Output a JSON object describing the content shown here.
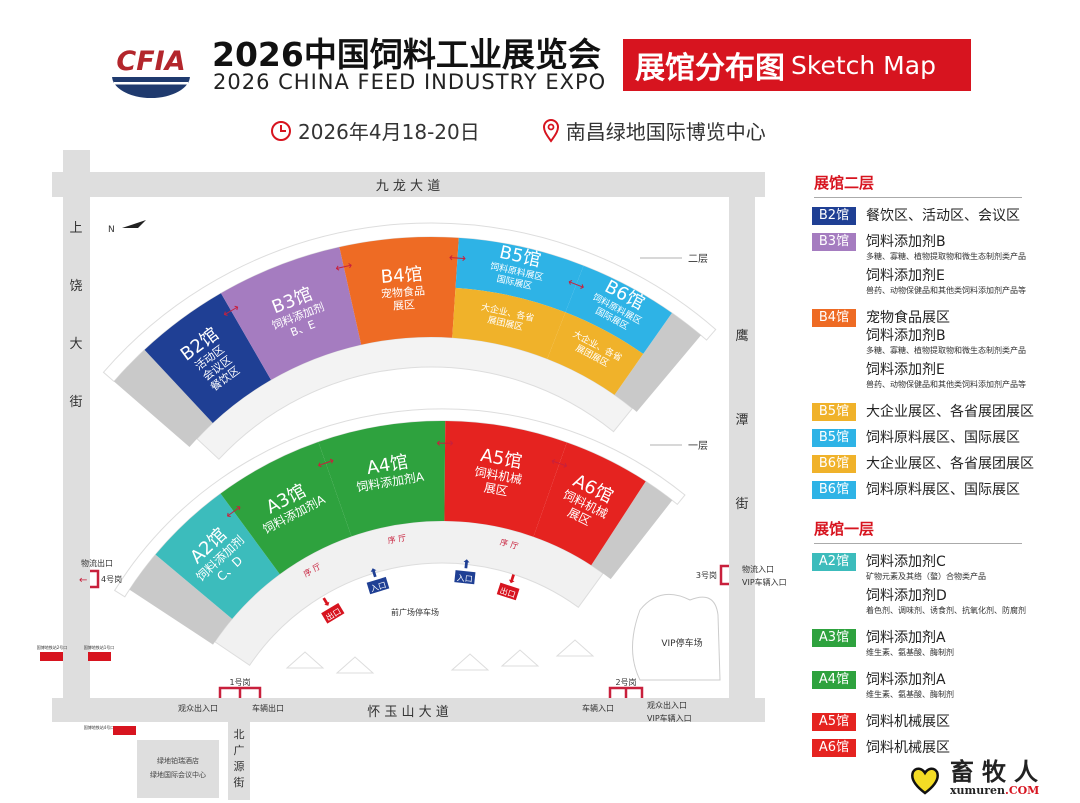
{
  "header": {
    "logo_text": "CFIA",
    "title": "2026中国饲料工业展览会",
    "subtitle": "2026 CHINA FEED INDUSTRY EXPO",
    "banner_cn": "展馆分布图",
    "banner_en": "Sketch Map",
    "date": "2026年4月18-20日",
    "venue": "南昌绿地国际博览中心"
  },
  "colors": {
    "accent": "#d7141f",
    "B2": "#1f3f94",
    "B3": "#a57cc0",
    "B4": "#ee6b24",
    "blue": "#2eb3e6",
    "yellow": "#f0b22a",
    "A2": "#3cbcbc",
    "green": "#2ea23e",
    "red": "#e52320",
    "gray": "#c9c9c9",
    "road": "#dedede"
  },
  "roads": {
    "north": "九 龙 大 道",
    "west": [
      "上",
      "饶",
      "大",
      "街"
    ],
    "east": [
      "鹰",
      "潭",
      "街"
    ],
    "south": "怀 玉 山 大 道",
    "south_branch": [
      "北",
      "广",
      "源",
      "街"
    ]
  },
  "map": {
    "compass": "N",
    "floor2_label": "二层",
    "floor1_label": "一层",
    "front_parking": "前广场停车场",
    "vip_parking": "VIP停车场",
    "hotel_lines": [
      "绿地铂瑞酒店",
      "绿地国际会议中心"
    ],
    "lobby": "序 厅",
    "entrance": "入口",
    "exit": "出口",
    "gates": {
      "g1": "1号岗",
      "g1_left": "观众出入口",
      "g1_right": "车辆出口",
      "g2": "2号岗",
      "g2_left": "车辆入口",
      "g2_right": "观众出入口",
      "g2_right2": "VIP车辆入口",
      "g3": "3号岗",
      "g3_r1": "物流入口",
      "g3_r2": "VIP车辆入口",
      "g4": "4号岗",
      "g4_top": "物流出口"
    },
    "metro": [
      "国博地铁站2号口",
      "国博地铁站1号口",
      "国博地铁站4号口"
    ]
  },
  "halls_upper": [
    {
      "id": "B2",
      "title": "B2馆",
      "lines": [
        "活动区",
        "会议区",
        "餐饮区"
      ]
    },
    {
      "id": "B3",
      "title": "B3馆",
      "lines": [
        "饲料添加剂",
        "B、E"
      ]
    },
    {
      "id": "B4",
      "title": "B4馆",
      "lines": [
        "宠物食品",
        "展区"
      ]
    },
    {
      "id": "B5",
      "title": "B5馆",
      "lines": [
        "饲料原料展区",
        "国际展区"
      ],
      "lower_lines": [
        "大企业、各省",
        "展团展区"
      ]
    },
    {
      "id": "B6",
      "title": "B6馆",
      "lines": [
        "饲料原料展区",
        "国际展区"
      ],
      "lower_lines": [
        "大企业、各省",
        "展团展区"
      ]
    }
  ],
  "halls_lower": [
    {
      "id": "A2",
      "title": "A2馆",
      "lines": [
        "饲料添加剂",
        "C、D"
      ]
    },
    {
      "id": "A3",
      "title": "A3馆",
      "lines": [
        "饲料添加剂A"
      ]
    },
    {
      "id": "A4",
      "title": "A4馆",
      "lines": [
        "饲料添加剂A"
      ]
    },
    {
      "id": "A5",
      "title": "A5馆",
      "lines": [
        "饲料机械",
        "展区"
      ]
    },
    {
      "id": "A6",
      "title": "A6馆",
      "lines": [
        "饲料机械",
        "展区"
      ]
    }
  ],
  "legend": {
    "floor2_title": "展馆二层",
    "floor1_title": "展馆一层",
    "floor2": [
      {
        "badge": "B2馆",
        "color": "#1f3f94",
        "items": [
          {
            "main": "餐饮区、活动区、会议区"
          }
        ]
      },
      {
        "badge": "B3馆",
        "color": "#a57cc0",
        "items": [
          {
            "main": "饲料添加剂B",
            "sub": "多糖、寡糖、植物提取物和微生态制剂类产品"
          },
          {
            "main": "饲料添加剂E",
            "sub": "兽药、动物保健品和其他类饲料添加剂产品等"
          }
        ]
      },
      {
        "badge": "B4馆",
        "color": "#ee6b24",
        "items": [
          {
            "main": "宠物食品展区"
          },
          {
            "main": "饲料添加剂B",
            "sub": "多糖、寡糖、植物提取物和微生态制剂类产品"
          },
          {
            "main": "饲料添加剂E",
            "sub": "兽药、动物保健品和其他类饲料添加剂产品等"
          }
        ]
      },
      {
        "badge": "B5馆",
        "color": "#f0b22a",
        "items": [
          {
            "main": "大企业展区、各省展团展区"
          }
        ]
      },
      {
        "badge": "B5馆",
        "color": "#2eb3e6",
        "items": [
          {
            "main": "饲料原料展区、国际展区"
          }
        ]
      },
      {
        "badge": "B6馆",
        "color": "#f0b22a",
        "items": [
          {
            "main": "大企业展区、各省展团展区"
          }
        ]
      },
      {
        "badge": "B6馆",
        "color": "#2eb3e6",
        "items": [
          {
            "main": "饲料原料展区、国际展区"
          }
        ]
      }
    ],
    "floor1": [
      {
        "badge": "A2馆",
        "color": "#3cbcbc",
        "items": [
          {
            "main": "饲料添加剂C",
            "sub": "矿物元素及其络（螯）合物类产品"
          },
          {
            "main": "饲料添加剂D",
            "sub": "着色剂、调味剂、诱食剂、抗氧化剂、防腐剂"
          }
        ]
      },
      {
        "badge": "A3馆",
        "color": "#2ea23e",
        "items": [
          {
            "main": "饲料添加剂A",
            "sub": "维生素、氨基酸、酶制剂"
          }
        ]
      },
      {
        "badge": "A4馆",
        "color": "#2ea23e",
        "items": [
          {
            "main": "饲料添加剂A",
            "sub": "维生素、氨基酸、酶制剂"
          }
        ]
      },
      {
        "badge": "A5馆",
        "color": "#e52320",
        "items": [
          {
            "main": "饲料机械展区"
          }
        ]
      },
      {
        "badge": "A6馆",
        "color": "#e52320",
        "items": [
          {
            "main": "饲料机械展区"
          }
        ]
      }
    ]
  },
  "watermark": {
    "cn": "畜牧人",
    "en": "xumuren",
    "suffix": ".COM"
  }
}
